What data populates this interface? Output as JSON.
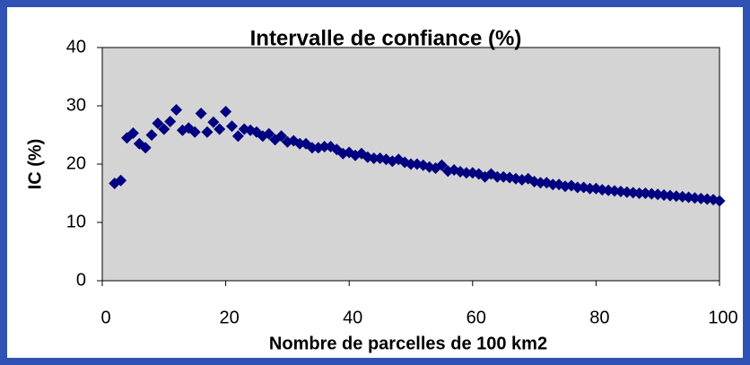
{
  "chart_data": {
    "type": "scatter",
    "title": "Intervalle de confiance (%)",
    "x_label": "Nombre de parcelles de 100 km2",
    "y_label": "IC (%)",
    "color": "#000080",
    "xlim": [
      0,
      100
    ],
    "xticks": [
      0,
      20,
      40,
      60,
      80,
      100
    ],
    "ylim": [
      0,
      40
    ],
    "yticks": [
      0,
      10,
      20,
      30,
      40
    ],
    "x": [
      2,
      3,
      4,
      5,
      6,
      7,
      8,
      9,
      10,
      11,
      12,
      13,
      14,
      15,
      16,
      17,
      18,
      19,
      20,
      21,
      22,
      23,
      24,
      25,
      26,
      27,
      28,
      29,
      30,
      31,
      32,
      33,
      34,
      35,
      36,
      37,
      38,
      39,
      40,
      41,
      42,
      43,
      44,
      45,
      46,
      47,
      48,
      49,
      50,
      51,
      52,
      53,
      54,
      55,
      56,
      57,
      58,
      59,
      60,
      61,
      62,
      63,
      64,
      65,
      66,
      67,
      68,
      69,
      70,
      71,
      72,
      73,
      74,
      75,
      76,
      77,
      78,
      79,
      80,
      81,
      82,
      83,
      84,
      85,
      86,
      87,
      88,
      89,
      90,
      91,
      92,
      93,
      94,
      95,
      96,
      97,
      98,
      99,
      100
    ],
    "values": [
      16.7,
      17.2,
      24.5,
      25.3,
      23.5,
      22.8,
      25,
      27,
      26,
      27.3,
      29.3,
      25.8,
      26.2,
      25.5,
      28.7,
      25.5,
      27.2,
      26,
      29,
      26.5,
      24.8,
      26,
      25.8,
      25.5,
      24.8,
      25.2,
      24.2,
      24.8,
      23.8,
      24,
      23.5,
      23.5,
      22.8,
      22.8,
      23,
      23,
      22.5,
      21.8,
      22,
      21.5,
      21.8,
      21.2,
      21,
      21,
      20.8,
      20.5,
      20.8,
      20.3,
      20,
      20,
      19.8,
      19.5,
      19.3,
      19.8,
      18.8,
      19,
      18.7,
      18.5,
      18.5,
      18.3,
      17.8,
      18.3,
      17.8,
      17.8,
      17.7,
      17.5,
      17.3,
      17.5,
      17,
      16.8,
      16.8,
      16.5,
      16.5,
      16.2,
      16.3,
      16,
      16,
      15.8,
      15.8,
      15.6,
      15.5,
      15.4,
      15.3,
      15.2,
      15.1,
      15,
      15,
      14.9,
      14.8,
      14.7,
      14.6,
      14.5,
      14.4,
      14.3,
      14.2,
      14.1,
      14,
      13.9,
      13.7
    ]
  }
}
